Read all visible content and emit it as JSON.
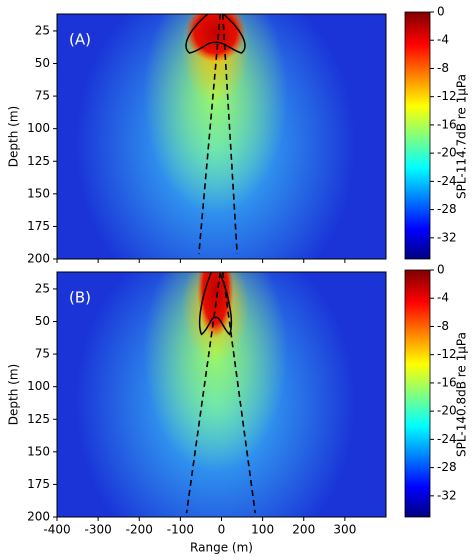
{
  "chart_data": [
    {
      "type": "contour",
      "panel_label": "(A)",
      "ylabel": "Depth (m)",
      "xlim": [
        -400,
        400
      ],
      "xticks": [
        -400,
        -300,
        -200,
        -100,
        0,
        100,
        200,
        300
      ],
      "ylim": [
        200,
        12
      ],
      "yticks": [
        25,
        50,
        75,
        100,
        125,
        150,
        175,
        200
      ],
      "colorbar_label": "SPL-114.7dB re 1μPa",
      "clim": [
        -35,
        0
      ],
      "cticks": [
        0,
        -4,
        -8,
        -12,
        -16,
        -20,
        -24,
        -28,
        -32
      ],
      "dashed_lines": [
        {
          "x": [
            -3,
            -55
          ],
          "y": [
            12,
            196
          ]
        },
        {
          "x": [
            3,
            38
          ],
          "y": [
            12,
            196
          ]
        }
      ]
    },
    {
      "type": "contour",
      "panel_label": "(B)",
      "ylabel": "Depth (m)",
      "xlabel": "Range (m)",
      "xlim": [
        -400,
        400
      ],
      "xticks": [
        -400,
        -300,
        -200,
        -100,
        0,
        100,
        200,
        300
      ],
      "ylim": [
        200,
        12
      ],
      "yticks": [
        25,
        50,
        75,
        100,
        125,
        150,
        175,
        200
      ],
      "colorbar_label": "SPL-140.8dB re 1μPa",
      "clim": [
        -35,
        0
      ],
      "cticks": [
        0,
        -4,
        -8,
        -12,
        -16,
        -20,
        -24,
        -28,
        -32
      ],
      "dashed_lines": [
        {
          "x": [
            -3,
            -85
          ],
          "y": [
            12,
            197
          ]
        },
        {
          "x": [
            3,
            82
          ],
          "y": [
            12,
            197
          ]
        }
      ]
    }
  ]
}
